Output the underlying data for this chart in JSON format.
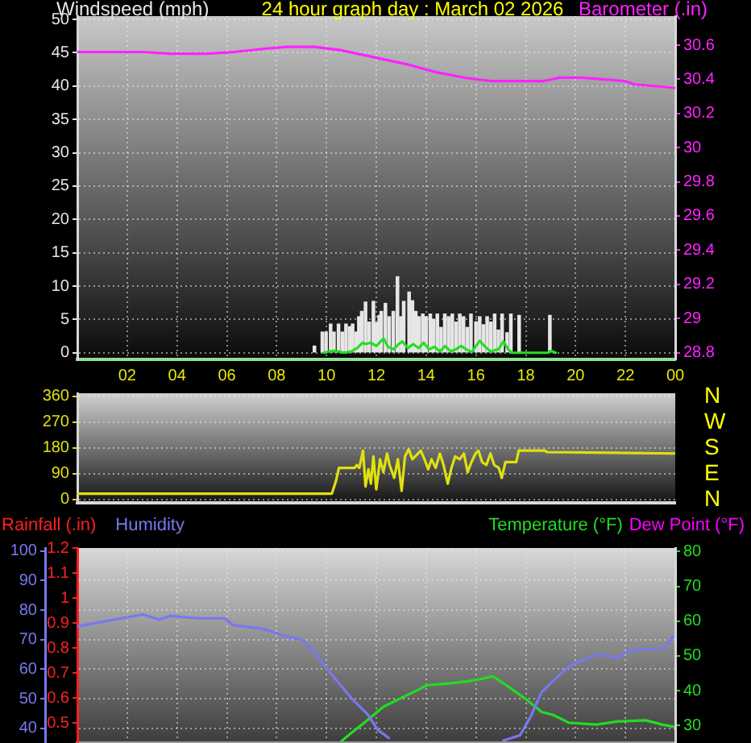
{
  "chart_data": [
    {
      "type": "bar",
      "title": "24 hour graph day : March 02 2026",
      "ylabel": "Windspeed (mph)",
      "y2label": "Barometer (.in)",
      "xlim": [
        "2026-03-02T00:00",
        "2026-03-03T00:00"
      ],
      "xticks": [
        {
          "value": "2026-03-02T02:00",
          "label": "02"
        },
        {
          "value": "2026-03-02T04:00",
          "label": "04"
        },
        {
          "value": "2026-03-02T06:00",
          "label": "06"
        },
        {
          "value": "2026-03-02T08:00",
          "label": "08"
        },
        {
          "value": "2026-03-02T10:00",
          "label": "10"
        },
        {
          "value": "2026-03-02T12:00",
          "label": "12"
        },
        {
          "value": "2026-03-02T14:00",
          "label": "14"
        },
        {
          "value": "2026-03-02T16:00",
          "label": "16"
        },
        {
          "value": "2026-03-02T18:00",
          "label": "18"
        },
        {
          "value": "2026-03-02T20:00",
          "label": "20"
        },
        {
          "value": "2026-03-02T22:00",
          "label": "22"
        },
        {
          "value": "2026-03-03T00:00",
          "label": "00"
        }
      ],
      "ylim": [
        -1,
        50.5
      ],
      "yticks": [
        0,
        5,
        10,
        15,
        20,
        25,
        30,
        35,
        40,
        45,
        50
      ],
      "y2lim": [
        28.76,
        30.77
      ],
      "y2ticks": [
        28.8,
        29,
        29.2,
        29.4,
        29.6,
        29.8,
        30,
        30.2,
        30.4,
        30.6
      ],
      "grid": true,
      "series": [
        {
          "type": "bar",
          "color": "#e6e6e6",
          "x": [
            "2026-03-02T09:31",
            "2026-03-02T09:50",
            "2026-03-02T09:59",
            "2026-03-02T10:10",
            "2026-03-02T10:18",
            "2026-03-02T10:29",
            "2026-03-02T10:38",
            "2026-03-02T10:47",
            "2026-03-02T10:56",
            "2026-03-02T11:03",
            "2026-03-02T11:12",
            "2026-03-02T11:18",
            "2026-03-02T11:25",
            "2026-03-02T11:34",
            "2026-03-02T11:43",
            "2026-03-02T11:53",
            "2026-03-02T12:00",
            "2026-03-02T12:07",
            "2026-03-02T12:12",
            "2026-03-02T12:22",
            "2026-03-02T12:31",
            "2026-03-02T12:41",
            "2026-03-02T12:51",
            "2026-03-02T12:59",
            "2026-03-02T13:06",
            "2026-03-02T13:19",
            "2026-03-02T13:27",
            "2026-03-02T13:35",
            "2026-03-02T13:43",
            "2026-03-02T13:52",
            "2026-03-02T14:00",
            "2026-03-02T14:10",
            "2026-03-02T14:18",
            "2026-03-02T14:27",
            "2026-03-02T14:36",
            "2026-03-02T14:45",
            "2026-03-02T14:54",
            "2026-03-02T15:03",
            "2026-03-02T15:12",
            "2026-03-02T15:21",
            "2026-03-02T15:30",
            "2026-03-02T15:39",
            "2026-03-02T15:48",
            "2026-03-02T16:00",
            "2026-03-02T16:09",
            "2026-03-02T16:18",
            "2026-03-02T16:27",
            "2026-03-02T16:36",
            "2026-03-02T16:45",
            "2026-03-02T16:54",
            "2026-03-02T17:03",
            "2026-03-02T17:15",
            "2026-03-02T17:24",
            "2026-03-02T17:44",
            "2026-03-02T18:58"
          ],
          "values": [
            1.0,
            3.1,
            3.1,
            4.3,
            3.1,
            4.3,
            3.1,
            4.3,
            3.9,
            4.3,
            3.1,
            5.4,
            6.2,
            7.6,
            4.6,
            7.7,
            4.5,
            5.6,
            6.2,
            7.4,
            5.4,
            6.2,
            11.4,
            5.4,
            7.7,
            9.1,
            7.8,
            6.2,
            5.4,
            5.8,
            5.4,
            5.8,
            5.0,
            5.8,
            3.8,
            5.8,
            5.4,
            5.8,
            4.6,
            5.8,
            5.4,
            3.8,
            5.8,
            4.6,
            5.4,
            4.2,
            5.4,
            4.6,
            5.8,
            3.4,
            5.8,
            3.0,
            5.8,
            5.6,
            5.6
          ]
        },
        {
          "type": "line",
          "color": "#22e022",
          "x": [
            "2026-03-02T09:54",
            "2026-03-02T10:06",
            "2026-03-02T10:18",
            "2026-03-02T10:30",
            "2026-03-02T10:42",
            "2026-03-02T11:00",
            "2026-03-02T11:14",
            "2026-03-02T11:27",
            "2026-03-02T11:34",
            "2026-03-02T11:47",
            "2026-03-02T12:00",
            "2026-03-02T12:12",
            "2026-03-02T12:18",
            "2026-03-02T12:28",
            "2026-03-02T12:41",
            "2026-03-02T12:54",
            "2026-03-02T13:03",
            "2026-03-02T13:16",
            "2026-03-02T13:29",
            "2026-03-02T13:42",
            "2026-03-02T13:54",
            "2026-03-02T14:07",
            "2026-03-02T14:20",
            "2026-03-02T14:33",
            "2026-03-02T14:46",
            "2026-03-02T14:59",
            "2026-03-02T15:11",
            "2026-03-02T15:24",
            "2026-03-02T15:37",
            "2026-03-02T15:50",
            "2026-03-02T16:09",
            "2026-03-02T16:22",
            "2026-03-02T16:35",
            "2026-03-02T16:54",
            "2026-03-02T17:06",
            "2026-03-02T17:18",
            "2026-03-02T17:27",
            "2026-03-02T18:54",
            "2026-03-02T19:00",
            "2026-03-02T19:12"
          ],
          "values": [
            0,
            0.2,
            0.3,
            0.2,
            0,
            0.2,
            0.7,
            1.5,
            1.3,
            1.5,
            1.0,
            1.8,
            2.1,
            0.9,
            0.5,
            1.3,
            1.7,
            0.7,
            1.3,
            0.7,
            1.5,
            0.5,
            0.9,
            0.2,
            1.0,
            0.2,
            0.5,
            1.0,
            0.5,
            0.1,
            1.8,
            0.9,
            0.2,
            0.5,
            1.7,
            0.5,
            0,
            0,
            0.3,
            0
          ]
        },
        {
          "type": "line",
          "axis": "y2",
          "color": "#ff22ff",
          "x": [
            "2026-03-02T00:00",
            "2026-03-02T02:39",
            "2026-03-02T03:43",
            "2026-03-02T05:13",
            "2026-03-02T06:18",
            "2026-03-02T07:35",
            "2026-03-02T08:26",
            "2026-03-02T09:31",
            "2026-03-02T10:35",
            "2026-03-02T11:53",
            "2026-03-02T13:10",
            "2026-03-02T14:27",
            "2026-03-02T15:31",
            "2026-03-02T16:36",
            "2026-03-02T18:44",
            "2026-03-02T19:23",
            "2026-03-02T20:14",
            "2026-03-02T21:58",
            "2026-03-02T22:23",
            "2026-03-03T00:00"
          ],
          "values": [
            30.56,
            30.56,
            30.55,
            30.55,
            30.56,
            30.58,
            30.59,
            30.59,
            30.57,
            30.53,
            30.49,
            30.44,
            30.41,
            30.39,
            30.39,
            30.41,
            30.41,
            30.39,
            30.37,
            30.35
          ]
        }
      ]
    },
    {
      "type": "line",
      "xlim": [
        "2026-03-02T00:00",
        "2026-03-03T00:00"
      ],
      "ylim": [
        -12,
        370
      ],
      "yticks": [
        0,
        90,
        180,
        270,
        360
      ],
      "grid": "y",
      "tick_labels": "y",
      "annotations": [
        "N",
        "W",
        "S",
        "E",
        "N"
      ],
      "series": [
        {
          "color": "#e0e010",
          "x": [
            "2026-03-02T00:00",
            "2026-03-02T10:13",
            "2026-03-02T10:23",
            "2026-03-02T10:30",
            "2026-03-02T11:08",
            "2026-03-02T11:13",
            "2026-03-02T11:19",
            "2026-03-02T11:28",
            "2026-03-02T11:34",
            "2026-03-02T11:41",
            "2026-03-02T11:47",
            "2026-03-02T11:53",
            "2026-03-02T12:00",
            "2026-03-02T12:09",
            "2026-03-02T12:17",
            "2026-03-02T12:26",
            "2026-03-02T12:32",
            "2026-03-02T12:43",
            "2026-03-02T12:52",
            "2026-03-02T13:01",
            "2026-03-02T13:09",
            "2026-03-02T13:18",
            "2026-03-02T13:27",
            "2026-03-02T13:37",
            "2026-03-02T13:47",
            "2026-03-02T13:56",
            "2026-03-02T14:05",
            "2026-03-02T14:13",
            "2026-03-02T14:23",
            "2026-03-02T14:33",
            "2026-03-02T14:42",
            "2026-03-02T14:52",
            "2026-03-02T15:01",
            "2026-03-02T15:10",
            "2026-03-02T15:21",
            "2026-03-02T15:31",
            "2026-03-02T15:40",
            "2026-03-02T15:49",
            "2026-03-02T15:59",
            "2026-03-02T16:06",
            "2026-03-02T16:15",
            "2026-03-02T16:25",
            "2026-03-02T16:35",
            "2026-03-02T16:44",
            "2026-03-02T16:55",
            "2026-03-02T17:02",
            "2026-03-02T17:11",
            "2026-03-02T17:37",
            "2026-03-02T17:43",
            "2026-03-02T18:47",
            "2026-03-02T18:51",
            "2026-03-03T00:00"
          ],
          "values": [
            20,
            20,
            65,
            110,
            110,
            120,
            110,
            170,
            45,
            105,
            55,
            150,
            35,
            140,
            95,
            160,
            120,
            75,
            140,
            30,
            150,
            175,
            140,
            155,
            170,
            140,
            105,
            140,
            110,
            160,
            120,
            55,
            110,
            150,
            140,
            160,
            95,
            130,
            160,
            170,
            130,
            120,
            160,
            120,
            110,
            75,
            130,
            130,
            170,
            170,
            165,
            160
          ]
        }
      ]
    },
    {
      "type": "line",
      "y3label": "Rainfall (.in)",
      "legend": "top",
      "xlim": [
        "2026-03-02T00:00",
        "2026-03-03T00:00"
      ],
      "xticks": [
        {
          "value": "2026-03-02T02:00",
          "label": null
        },
        {
          "value": "2026-03-02T04:00",
          "label": null
        },
        {
          "value": "2026-03-02T06:00",
          "label": null
        },
        {
          "value": "2026-03-02T08:00",
          "label": null
        },
        {
          "value": "2026-03-02T10:00",
          "label": null
        },
        {
          "value": "2026-03-02T12:00",
          "label": null
        },
        {
          "value": "2026-03-02T14:00",
          "label": null
        },
        {
          "value": "2026-03-02T16:00",
          "label": null
        },
        {
          "value": "2026-03-02T18:00",
          "label": null
        },
        {
          "value": "2026-03-02T20:00",
          "label": null
        },
        {
          "value": "2026-03-02T22:00",
          "label": null
        }
      ],
      "ylim": [
        35,
        101
      ],
      "yticks": [
        40,
        50,
        60,
        70,
        80,
        90,
        100
      ],
      "y2lim": [
        25,
        81
      ],
      "y2ticks": [
        30,
        40,
        50,
        60,
        70,
        80
      ],
      "y3lim": [
        0.42,
        1.2
      ],
      "y3ticks": [
        0.5,
        0.6,
        0.7,
        0.8,
        0.9,
        1,
        1.1,
        1.2
      ],
      "grid": true,
      "tick_labels": "y",
      "series": [
        {
          "name": "Humidity",
          "color": "#7878f0",
          "x": [
            "2026-03-02T00:00",
            "2026-03-02T00:53",
            "2026-03-02T01:46",
            "2026-03-02T02:38",
            "2026-03-02T03:17",
            "2026-03-02T03:44",
            "2026-03-02T04:50",
            "2026-03-02T05:55",
            "2026-03-02T06:15",
            "2026-03-02T07:28",
            "2026-03-02T08:20",
            "2026-03-02T08:59",
            "2026-03-02T09:26",
            "2026-03-02T10:05",
            "2026-03-02T10:32",
            "2026-03-02T11:05",
            "2026-03-02T11:38",
            "2026-03-02T12:04",
            "2026-03-02T12:30",
            "2026-03-02T14:48",
            "2026-03-02T17:06",
            "2026-03-02T17:46",
            "2026-03-02T18:12",
            "2026-03-02T18:38",
            "2026-03-02T19:18",
            "2026-03-02T19:44",
            "2026-03-02T20:23",
            "2026-03-02T20:50",
            "2026-03-02T21:43",
            "2026-03-02T22:09",
            "2026-03-02T22:49",
            "2026-03-02T23:35",
            "2026-03-02T23:55"
          ],
          "values": [
            74.5,
            75.8,
            77.2,
            78.5,
            76.7,
            78.0,
            77.2,
            77.2,
            74.9,
            73.6,
            71.2,
            70.0,
            66.7,
            59.4,
            54.9,
            49.4,
            44.9,
            39.4,
            36.7,
            null,
            35.8,
            37.6,
            44.0,
            52.2,
            57.6,
            60.9,
            63.4,
            64.9,
            64.0,
            66.3,
            66.7,
            67.0,
            71.2
          ]
        },
        {
          "name": "Temperature (°F)",
          "axis": "y2",
          "color": "#22dd22",
          "x": [
            "2026-03-02T10:36",
            "2026-03-02T10:58",
            "2026-03-02T11:38",
            "2026-03-02T12:17",
            "2026-03-02T12:56",
            "2026-03-02T13:36",
            "2026-03-02T14:02",
            "2026-03-02T14:42",
            "2026-03-02T15:34",
            "2026-03-02T16:14",
            "2026-03-02T16:40",
            "2026-03-02T17:13",
            "2026-03-02T17:59",
            "2026-03-02T18:38",
            "2026-03-02T19:05",
            "2026-03-02T19:44",
            "2026-03-02T20:50",
            "2026-03-02T21:43",
            "2026-03-02T22:49",
            "2026-03-02T23:28",
            "2026-03-02T23:55"
          ],
          "values": [
            25.5,
            27.7,
            31.5,
            35.4,
            37.7,
            40.0,
            41.6,
            42.0,
            42.6,
            43.4,
            44.2,
            41.6,
            37.7,
            33.9,
            33.1,
            30.8,
            30.3,
            31.2,
            31.5,
            30.3,
            29.7
          ]
        },
        {
          "name": "Dew Point (°F)",
          "axis": "y2",
          "color": "#ff00ff"
        }
      ]
    }
  ]
}
